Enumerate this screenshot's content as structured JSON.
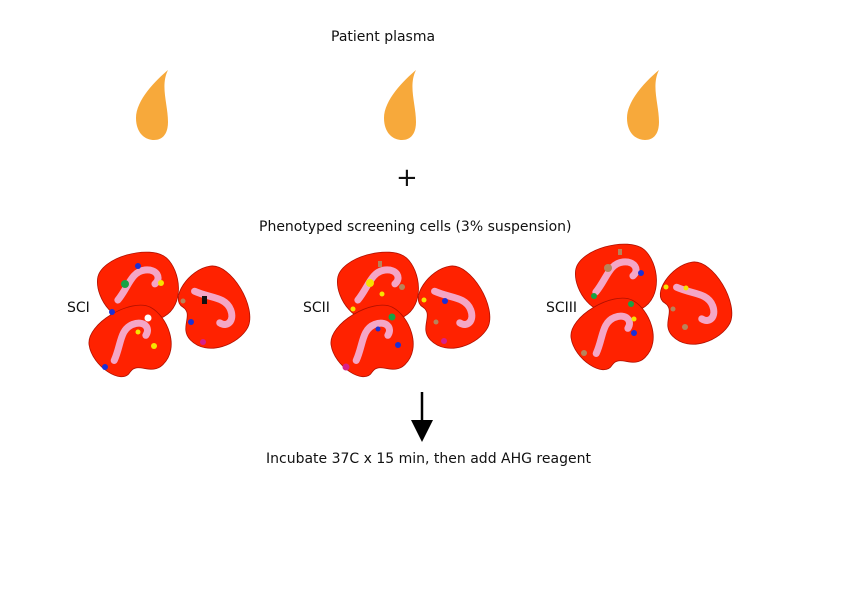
{
  "plasma_title": "Patient plasma",
  "plus_symbol": "+",
  "cells_title": "Phenotyped screening cells (3% suspension)",
  "screening_cells": [
    {
      "label": "SCI"
    },
    {
      "label": "SCII"
    },
    {
      "label": "SCIII"
    }
  ],
  "step_text": "Incubate 37C x 15 min, then add AHG reagent",
  "colors": {
    "plasma": "#f7a93b",
    "cell": "#ff2200",
    "cell_outline": "#b01000",
    "nucleus": "#f4a6c6",
    "antigen_blue": "#1a2fd6",
    "antigen_yellow": "#f6e400",
    "antigen_green": "#17a345",
    "antigen_brown": "#b7835a",
    "antigen_magenta": "#d6208a",
    "antigen_black": "#111111",
    "antigen_white": "#ffffff",
    "arrow": "#000000"
  }
}
